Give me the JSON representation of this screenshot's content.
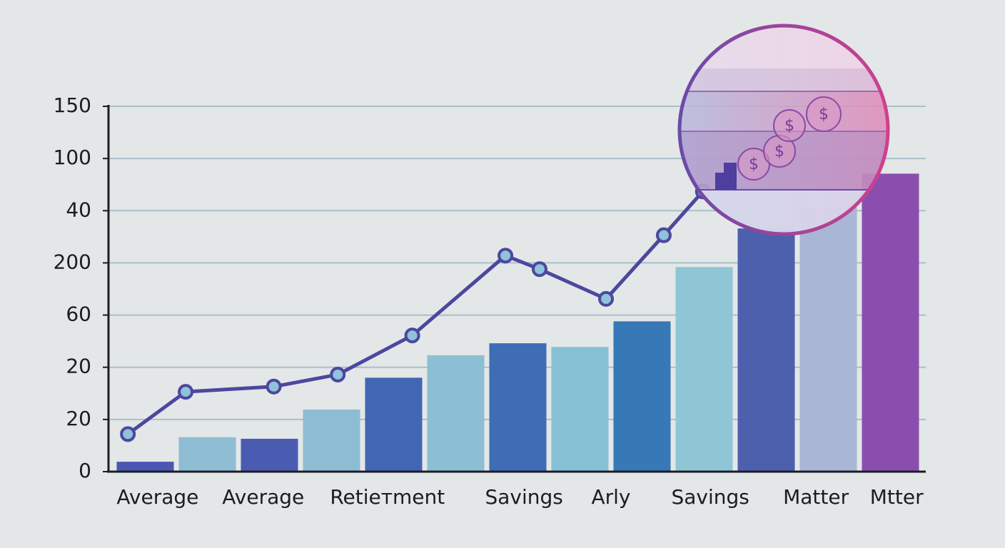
{
  "chart_data": {
    "type": "combo",
    "xlim": [
      0,
      13
    ],
    "xticks": [
      {
        "value": 0.7,
        "label": "Average"
      },
      {
        "value": 2.4,
        "label": "Average"
      },
      {
        "value": 4.4,
        "label": "Retieтment"
      },
      {
        "value": 6.6,
        "label": "Savings"
      },
      {
        "value": 8,
        "label": "Arly"
      },
      {
        "value": 9.6,
        "label": "Savings"
      },
      {
        "value": 11.3,
        "label": "Matter"
      },
      {
        "value": 12.6,
        "label": "Mtter"
      }
    ],
    "ylim": [
      0,
      7
    ],
    "yticks": [
      {
        "value": 0,
        "label": "0"
      },
      {
        "value": 1,
        "label": "20"
      },
      {
        "value": 2,
        "label": "20"
      },
      {
        "value": 3,
        "label": "60"
      },
      {
        "value": 4,
        "label": "200"
      },
      {
        "value": 5,
        "label": "40"
      },
      {
        "value": 6,
        "label": "100"
      },
      {
        "value": 7,
        "label": "150"
      }
    ],
    "grid": true,
    "series": [
      {
        "type": "bar",
        "x": [
          0.5,
          1.5,
          2.5,
          3.5,
          4.5,
          5.5,
          6.5,
          7.5,
          8.5,
          9.5,
          10.5,
          11.5,
          12.5
        ],
        "values": [
          0.19,
          0.66,
          0.63,
          1.19,
          1.8,
          2.23,
          2.46,
          2.39,
          2.88,
          3.92,
          4.66,
          5.07,
          5.71
        ],
        "colors": [
          "#4a58b4",
          "#8fbdd4",
          "#4a5cb2",
          "#8dbdd3",
          "#4266b3",
          "#8cbfd3",
          "#3f6db5",
          "#86c0d5",
          "#3778b6",
          "#8ec6d5",
          "#4d60ae",
          "#a9b6d6",
          "#8a4fae"
        ]
      },
      {
        "type": "line",
        "color": "#4c479e",
        "x": [
          0.22,
          1.15,
          2.57,
          3.6,
          4.8,
          6.3,
          6.85,
          7.92,
          8.85,
          9.48
        ],
        "values": [
          0.72,
          1.53,
          1.63,
          1.86,
          2.61,
          4.14,
          3.88,
          3.31,
          4.53,
          5.37
        ]
      }
    ]
  }
}
